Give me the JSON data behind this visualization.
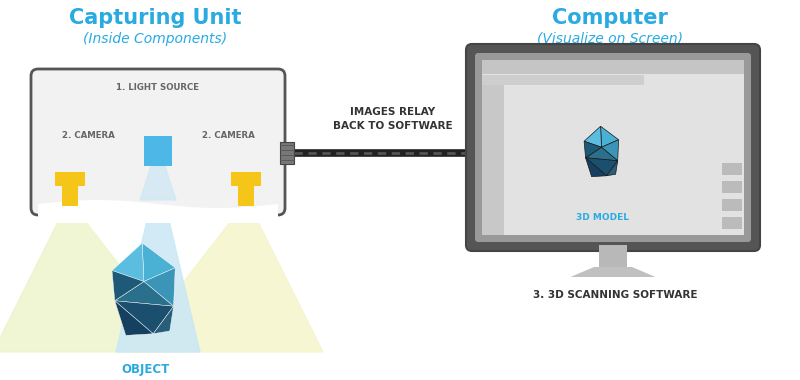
{
  "bg_color": "#ffffff",
  "title_left": "Capturing Unit",
  "subtitle_left": "(Inside Components)",
  "title_right": "Computer",
  "subtitle_right": "(Visualize on Screen)",
  "title_color": "#29abe2",
  "label_color": "#29abe2",
  "dark_text": "#333333",
  "text_color": "#666666",
  "relay_text": "IMAGES RELAY\nBACK TO SOFTWARE",
  "label3": "3. 3D SCANNING SOFTWARE",
  "label_object": "OBJECT",
  "label_light": "1. LIGHT SOURCE",
  "label_camera_l": "2. CAMERA",
  "label_camera_r": "2. CAMERA",
  "label_3dmodel": "3D MODEL",
  "box_fill": "#f2f2f2",
  "box_edge": "#555555",
  "light_source_color": "#4db8e8",
  "camera_color": "#f5c518",
  "beam_center_color": "#cce8f5",
  "beam_left_color": "#eef5cc",
  "beam_right_color": "#f5f5cc",
  "monitor_frame": "#555555",
  "monitor_frame_outer": "#444444",
  "monitor_screen_bg": "#e8e8e8",
  "monitor_bar_top": "#cccccc",
  "monitor_sidebar_left": "#c8c8c8",
  "monitor_sidebar_right_bars": "#b8b8b8",
  "monitor_stand_color": "#c0c0c0",
  "monitor_base_color": "#c8c8c8",
  "cable_color": "#222222",
  "connector_color": "#777777"
}
